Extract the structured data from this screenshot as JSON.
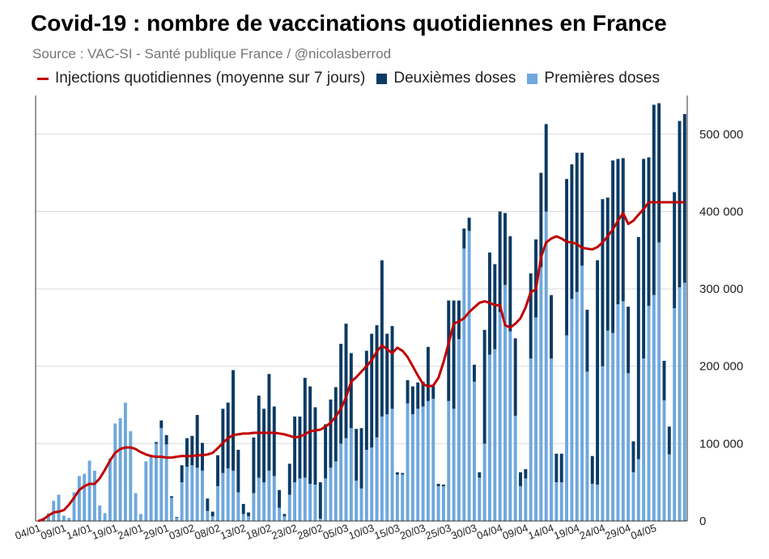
{
  "chart_data": {
    "type": "bar",
    "title": "Covid-19 : nombre de vaccinations quotidiennes en France",
    "subtitle": "Source : VAC-SI - Santé publique France / @nicolasberrod",
    "colors": {
      "first": "#6fa8dc",
      "second": "#0b3a63",
      "line": "#c00000",
      "grid": "#d9d9d9"
    },
    "legend": [
      {
        "key": "line",
        "label": "Injections quotidiennes (moyenne sur 7 jours)"
      },
      {
        "key": "second",
        "label": "Deuxièmes doses"
      },
      {
        "key": "first",
        "label": "Premières doses"
      }
    ],
    "ylim": [
      0,
      550000
    ],
    "yticks": [
      0,
      100000,
      200000,
      300000,
      400000,
      500000
    ],
    "ytick_labels": [
      "0",
      "100 000",
      "200 000",
      "300 000",
      "400 000",
      "500 000"
    ],
    "xtick_labels": [
      "04/01",
      "09/01",
      "14/01",
      "19/01",
      "24/01",
      "29/01",
      "03/02",
      "08/02",
      "13/02",
      "18/02",
      "23/02",
      "28/02",
      "05/03",
      "10/03",
      "15/03",
      "20/03",
      "25/03",
      "30/03",
      "04/04",
      "09/04",
      "14/04",
      "19/04",
      "24/04",
      "29/04",
      "04/05"
    ],
    "series": [
      {
        "name": "Premières doses",
        "values": [
          0,
          4000,
          10000,
          26000,
          34000,
          7000,
          4000,
          37000,
          58000,
          61000,
          78000,
          65000,
          20000,
          10000,
          81000,
          126000,
          133000,
          153000,
          116000,
          36000,
          9000,
          77000,
          85000,
          100000,
          120000,
          99000,
          30000,
          4000,
          50000,
          70000,
          72000,
          69000,
          65000,
          13000,
          6000,
          45000,
          62000,
          68000,
          65000,
          37000,
          9000,
          6000,
          36000,
          56000,
          50000,
          65000,
          58000,
          17000,
          6000,
          34000,
          50000,
          55000,
          56000,
          48000,
          47000,
          3000,
          55000,
          69000,
          77000,
          100000,
          107000,
          120000,
          52000,
          42000,
          92000,
          95000,
          108000,
          135000,
          138000,
          145000,
          60000,
          60000,
          152000,
          138000,
          145000,
          148000,
          155000,
          158000,
          45000,
          45000,
          155000,
          145000,
          235000,
          352000,
          375000,
          180000,
          56000,
          100000,
          215000,
          222000,
          270000,
          305000,
          245000,
          136000,
          45000,
          55000,
          210000,
          263000,
          328000,
          400000,
          210000,
          50000,
          50000,
          240000,
          287000,
          296000,
          330000,
          193000,
          48000,
          47000,
          200000,
          246000,
          243000,
          280000,
          284000,
          191000,
          63000,
          80000,
          210000,
          278000,
          292000,
          360000,
          156000,
          86000,
          275000,
          302000,
          308000
        ]
      },
      {
        "name": "Deuxièmes doses",
        "values": [
          0,
          0,
          0,
          0,
          0,
          0,
          0,
          0,
          0,
          0,
          0,
          0,
          0,
          0,
          0,
          0,
          0,
          0,
          0,
          0,
          0,
          0,
          0,
          2000,
          10000,
          12000,
          2000,
          1000,
          22000,
          37000,
          38000,
          68000,
          36000,
          16000,
          6000,
          40000,
          83000,
          85000,
          130000,
          55000,
          13000,
          5000,
          72000,
          106000,
          95000,
          125000,
          90000,
          23000,
          3000,
          40000,
          85000,
          80000,
          129000,
          126000,
          100000,
          47000,
          70000,
          88000,
          96000,
          129000,
          148000,
          97000,
          67000,
          78000,
          128000,
          147000,
          145000,
          202000,
          104000,
          107000,
          3000,
          2000,
          30000,
          36000,
          34000,
          32000,
          70000,
          16000,
          3000,
          2000,
          130000,
          140000,
          50000,
          26000,
          17000,
          22000,
          7000,
          147000,
          132000,
          110000,
          130000,
          93000,
          123000,
          100000,
          18000,
          12000,
          110000,
          101000,
          122000,
          113000,
          82000,
          37000,
          37000,
          202000,
          174000,
          180000,
          146000,
          80000,
          36000,
          290000,
          216000,
          172000,
          223000,
          188000,
          185000,
          86000,
          40000,
          287000,
          258000,
          192000,
          246000,
          180000,
          51000,
          36000,
          150000,
          215000,
          218000
        ]
      },
      {
        "name": "Injections quotidiennes (moyenne sur 7 jours)",
        "values": [
          0,
          2000,
          7000,
          11000,
          12000,
          14000,
          21000,
          30000,
          40000,
          45000,
          48000,
          48000,
          55000,
          66000,
          78000,
          88000,
          93000,
          95000,
          95000,
          93000,
          89000,
          86000,
          84000,
          83000,
          83000,
          82000,
          82000,
          83000,
          84000,
          84000,
          84000,
          85000,
          85000,
          86000,
          88000,
          94000,
          101000,
          107000,
          111000,
          112000,
          113000,
          113000,
          114000,
          114000,
          114000,
          114000,
          114000,
          113000,
          112000,
          110000,
          108000,
          109000,
          112000,
          116000,
          117000,
          118000,
          122000,
          127000,
          135000,
          145000,
          160000,
          180000,
          186000,
          193000,
          200000,
          208000,
          219000,
          227000,
          222000,
          217000,
          224000,
          220000,
          212000,
          200000,
          188000,
          177000,
          174000,
          175000,
          185000,
          205000,
          230000,
          255000,
          258000,
          262000,
          270000,
          276000,
          282000,
          284000,
          282000,
          279000,
          279000,
          253000,
          250000,
          255000,
          262000,
          276000,
          296000,
          299000,
          341000,
          360000,
          365000,
          368000,
          365000,
          361000,
          360000,
          358000,
          353000,
          352000,
          351000,
          354000,
          360000,
          368000,
          377000,
          388000,
          398000,
          384000,
          388000,
          396000,
          403000,
          412000,
          412000,
          412000,
          412000,
          412000,
          412000,
          412000,
          412000
        ]
      }
    ]
  }
}
